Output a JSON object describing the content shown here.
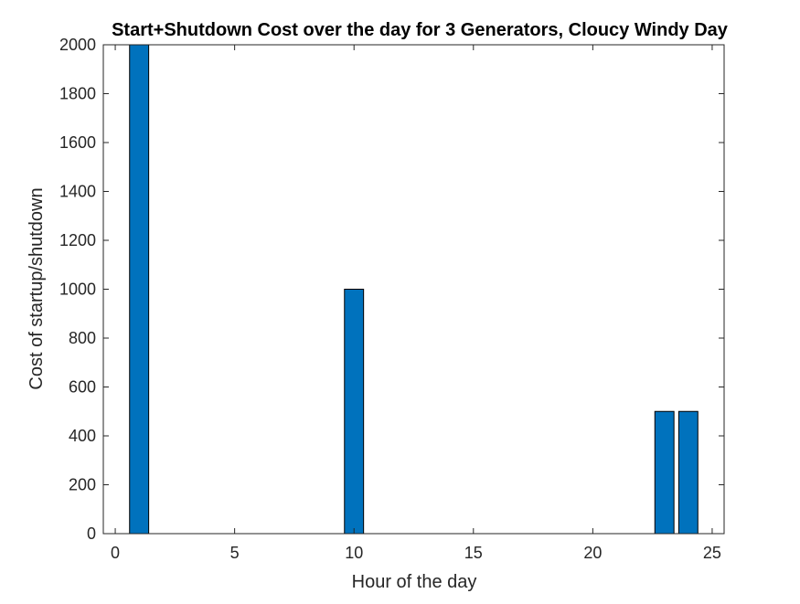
{
  "chart_data": {
    "type": "bar",
    "title": "Start+Shutdown Cost over the day for 3 Generators, Cloucy Windy Day",
    "xlabel": "Hour of the day",
    "ylabel": "Cost of startup/shutdown",
    "x": [
      1,
      10,
      23,
      24
    ],
    "values": [
      2000,
      1000,
      500,
      500
    ],
    "xlim": [
      -0.5,
      25.5
    ],
    "ylim": [
      0,
      2000
    ],
    "xticks": [
      0,
      5,
      10,
      15,
      20,
      25
    ],
    "yticks": [
      0,
      200,
      400,
      600,
      800,
      1000,
      1200,
      1400,
      1600,
      1800,
      2000
    ],
    "bar_color": "#0072BD",
    "grid": false,
    "legend": "none"
  }
}
